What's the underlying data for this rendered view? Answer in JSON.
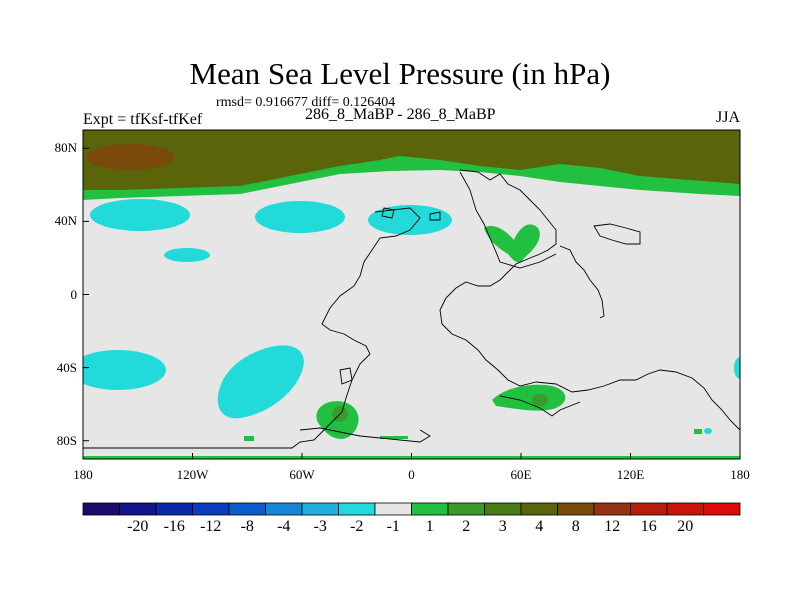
{
  "title": "Mean Sea Level Pressure (in hPa)",
  "stats": "rmsd= 0.916677 diff= 0.126404",
  "left_label": "Expt = tfKsf-tfKef",
  "center_label": "286_8_MaBP - 286_8_MaBP",
  "right_label": "JJA",
  "lat_ticks": [
    {
      "label": "80N",
      "value": 80
    },
    {
      "label": "40N",
      "value": 40
    },
    {
      "label": "0",
      "value": 0
    },
    {
      "label": "40S",
      "value": -40
    },
    {
      "label": "80S",
      "value": -80
    }
  ],
  "lon_ticks": [
    {
      "label": "180",
      "value": -180
    },
    {
      "label": "120W",
      "value": -120
    },
    {
      "label": "60W",
      "value": -60
    },
    {
      "label": "0",
      "value": 0
    },
    {
      "label": "60E",
      "value": 60
    },
    {
      "label": "120E",
      "value": 120
    },
    {
      "label": "180",
      "value": 180
    }
  ],
  "colorbar": {
    "colors": [
      "#1a0a6b",
      "#14148c",
      "#0a28a8",
      "#0a3cbe",
      "#0a5ccc",
      "#1488d8",
      "#1eaee0",
      "#22dada",
      "#e6e6e6",
      "#22c040",
      "#3c9a28",
      "#4a7a14",
      "#5a640a",
      "#7a4a0a",
      "#963214",
      "#b41e0a",
      "#c8140a",
      "#dc0a0a"
    ],
    "labels": [
      "-20",
      "-16",
      "-12",
      "-8",
      "-4",
      "-3",
      "-2",
      "-1",
      "1",
      "2",
      "3",
      "4",
      "8",
      "12",
      "16",
      "20"
    ]
  },
  "colors": {
    "background_field": "#e6e6e6",
    "cyan": "#22dada",
    "green": "#22c040",
    "olive": "#5a640a",
    "brown": "#7a4a0a",
    "coast": "#000000"
  }
}
